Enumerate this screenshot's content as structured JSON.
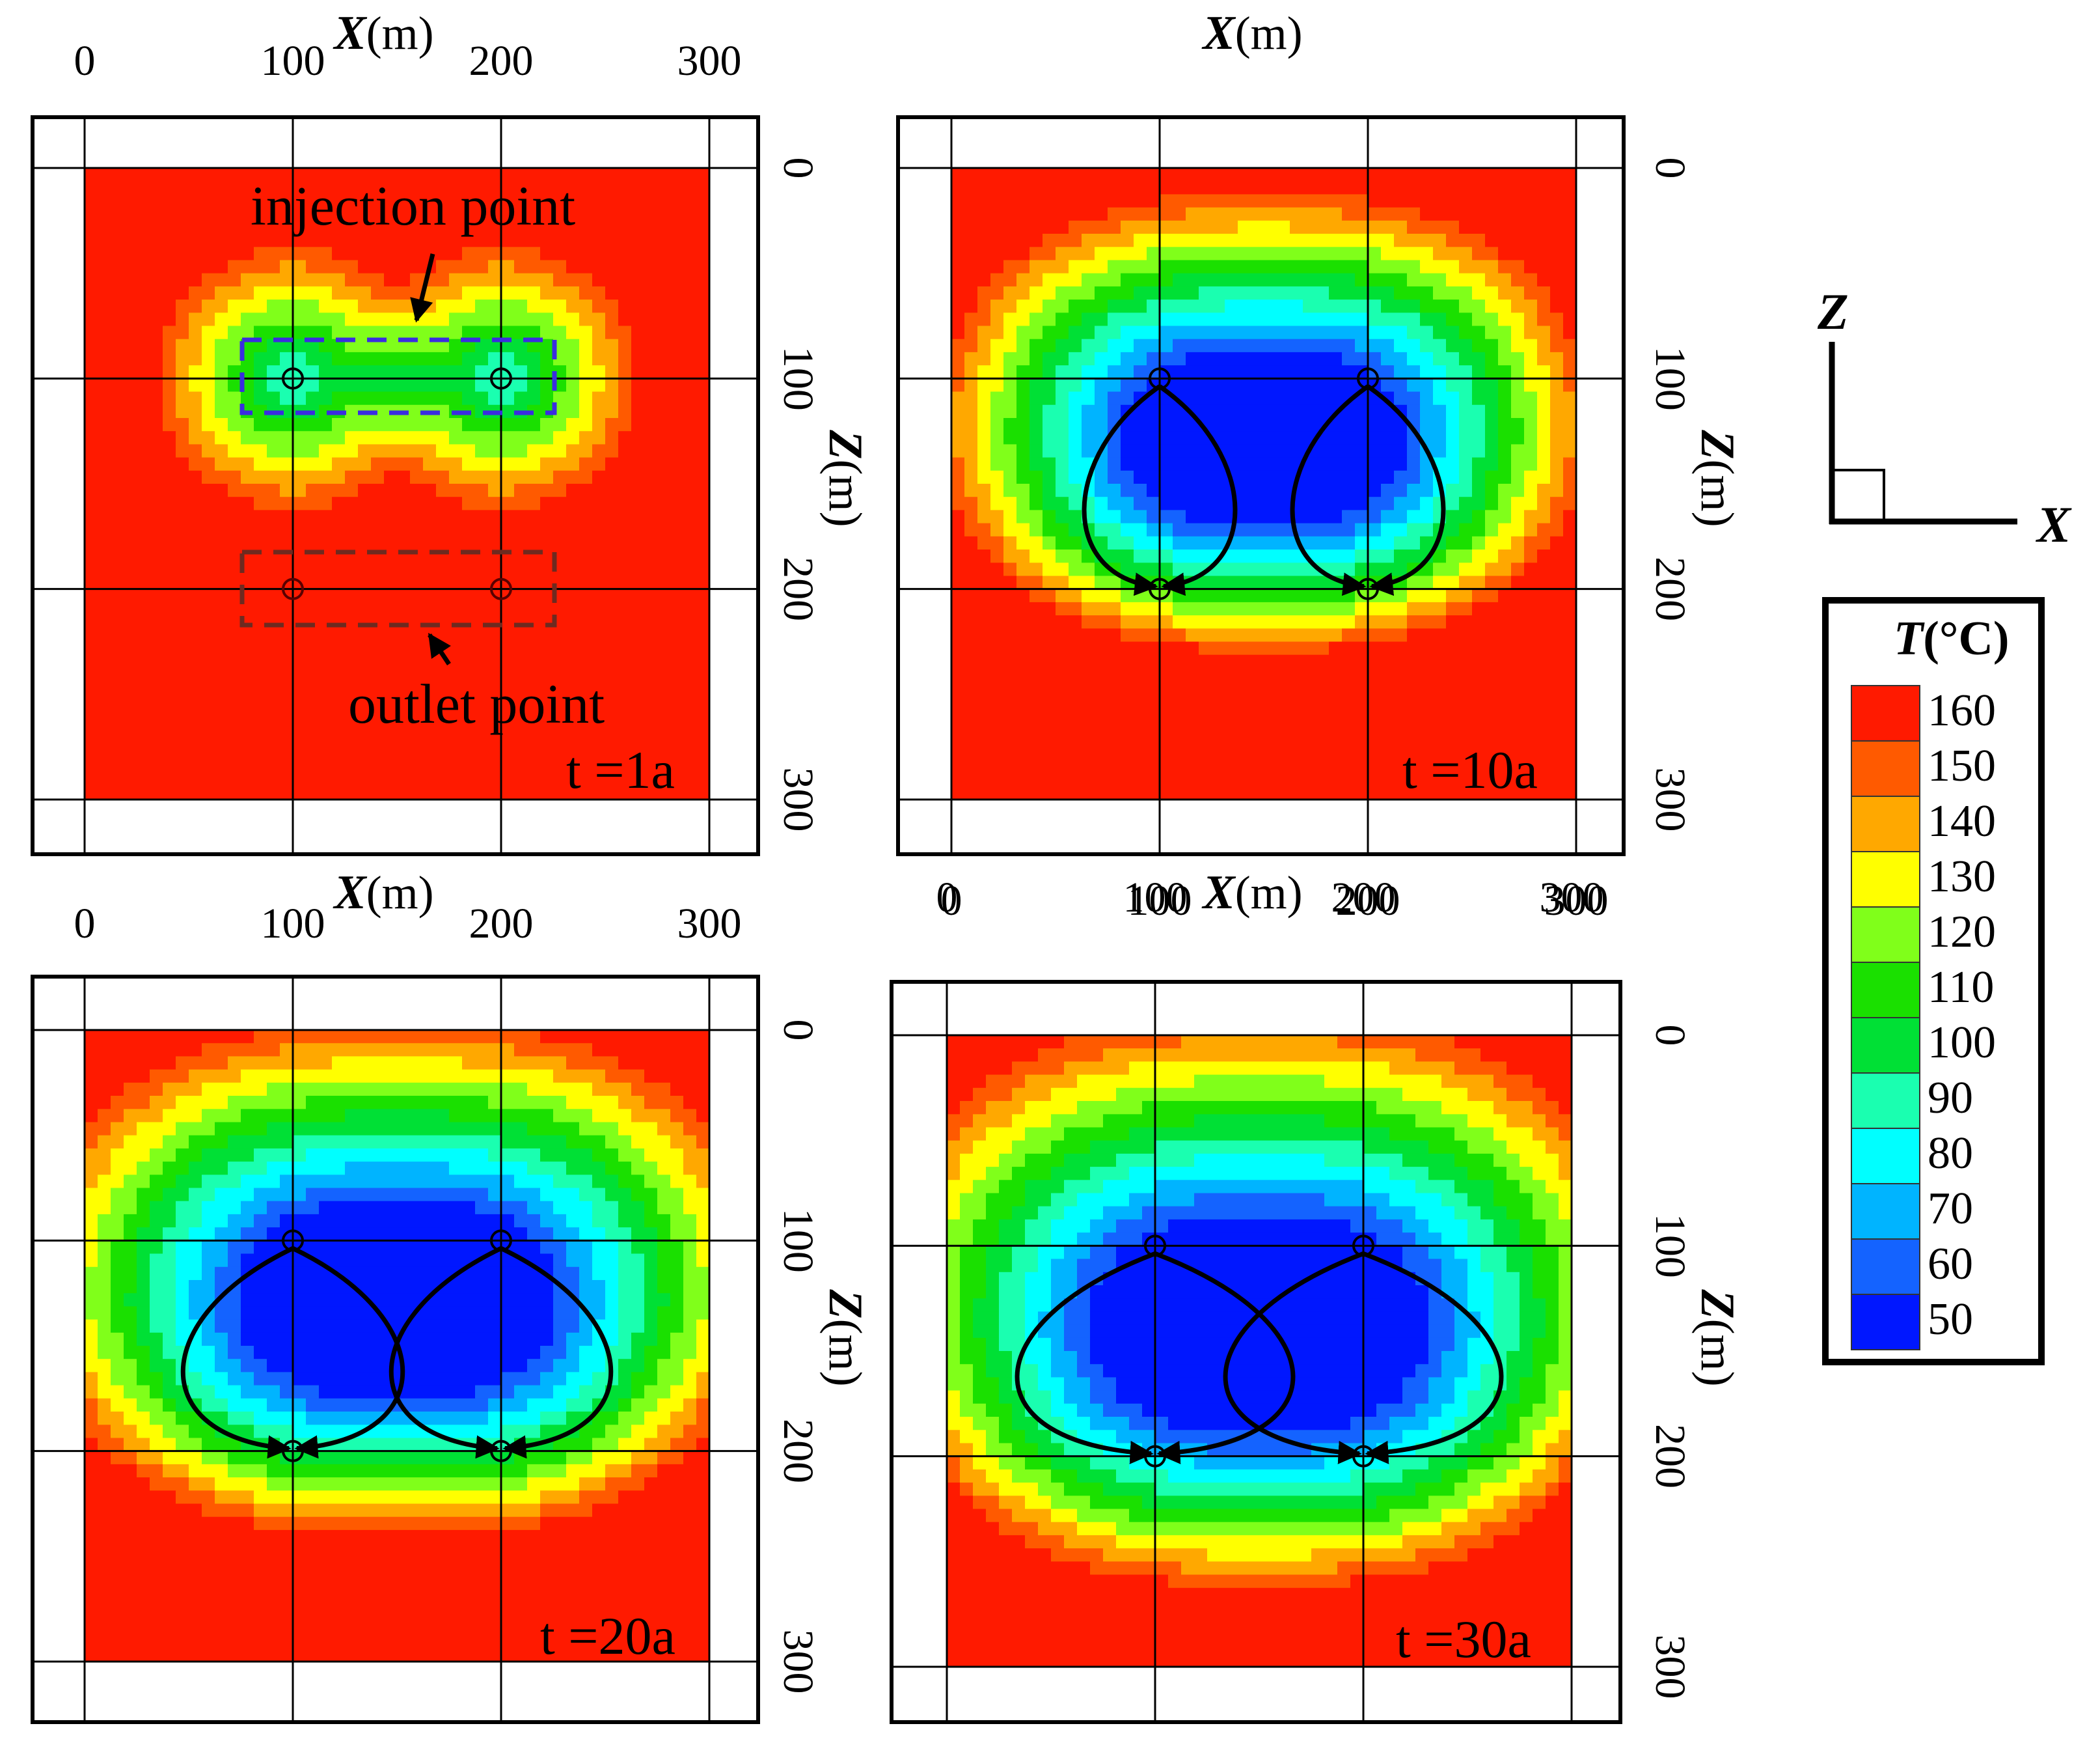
{
  "colors": {
    "background": "#ffffff",
    "ink": "#000000",
    "injection_box": "#3a2de0",
    "outlet_box": "#6e2a20"
  },
  "legend": {
    "title_var": "T",
    "title_unit": "(°C)",
    "levels": [
      {
        "label": "160",
        "color": "#ff1a00"
      },
      {
        "label": "150",
        "color": "#ff5a00"
      },
      {
        "label": "140",
        "color": "#ffa800"
      },
      {
        "label": "130",
        "color": "#ffff00"
      },
      {
        "label": "120",
        "color": "#80ff1a"
      },
      {
        "label": "110",
        "color": "#1ae000"
      },
      {
        "label": "100",
        "color": "#00e035"
      },
      {
        "label": "90",
        "color": "#1affb0"
      },
      {
        "label": "80",
        "color": "#00ffff"
      },
      {
        "label": "70",
        "color": "#00b4ff"
      },
      {
        "label": "60",
        "color": "#1463ff"
      },
      {
        "label": "50",
        "color": "#0017ff"
      }
    ]
  },
  "axis_labels": {
    "x_var": "X",
    "x_unit": "(m)",
    "z_var": "Z",
    "z_unit": "(m)"
  },
  "coordinate_icon": {
    "z_label": "Z",
    "x_label": "X"
  },
  "annotations": {
    "injection": "injection point",
    "outlet": "outlet point"
  },
  "chart_data": [
    {
      "type": "heatmap",
      "time_label": "t =1a",
      "x_ticks": [
        "0",
        "100",
        "200",
        "300"
      ],
      "z_ticks": [
        "0",
        "100",
        "200",
        "300"
      ],
      "xlim": [
        0,
        300
      ],
      "zlim": [
        0,
        300
      ],
      "injection_points": [
        [
          100,
          100
        ],
        [
          200,
          100
        ]
      ],
      "outlet_points": [
        [
          100,
          200
        ],
        [
          200,
          200
        ]
      ],
      "cold_front_max_depth_m": 140,
      "temperature_range_C": [
        90,
        160
      ]
    },
    {
      "type": "heatmap",
      "time_label": "t =10a",
      "x_ticks": [
        "0",
        "100",
        "200",
        "300"
      ],
      "z_ticks": [
        "0",
        "100",
        "200",
        "300"
      ],
      "xlim": [
        0,
        300
      ],
      "zlim": [
        0,
        300
      ],
      "injection_points": [
        [
          100,
          100
        ],
        [
          200,
          100
        ]
      ],
      "outlet_points": [
        [
          100,
          200
        ],
        [
          200,
          200
        ]
      ],
      "cold_front_max_depth_m": 230,
      "temperature_range_C": [
        50,
        160
      ]
    },
    {
      "type": "heatmap",
      "time_label": "t =20a",
      "x_ticks": [
        "0",
        "100",
        "200",
        "300"
      ],
      "z_ticks": [
        "0",
        "100",
        "200",
        "300"
      ],
      "xlim": [
        0,
        300
      ],
      "zlim": [
        0,
        300
      ],
      "injection_points": [
        [
          100,
          100
        ],
        [
          200,
          100
        ]
      ],
      "outlet_points": [
        [
          100,
          200
        ],
        [
          200,
          200
        ]
      ],
      "cold_front_max_depth_m": 260,
      "temperature_range_C": [
        50,
        160
      ]
    },
    {
      "type": "heatmap",
      "time_label": "t =30a",
      "x_ticks": [
        "0",
        "100",
        "200",
        "300"
      ],
      "z_ticks": [
        "0",
        "100",
        "200",
        "300"
      ],
      "xlim": [
        0,
        300
      ],
      "zlim": [
        0,
        300
      ],
      "injection_points": [
        [
          100,
          100
        ],
        [
          200,
          100
        ]
      ],
      "outlet_points": [
        [
          100,
          200
        ],
        [
          200,
          200
        ]
      ],
      "cold_front_max_depth_m": 285,
      "temperature_range_C": [
        50,
        160
      ]
    }
  ]
}
